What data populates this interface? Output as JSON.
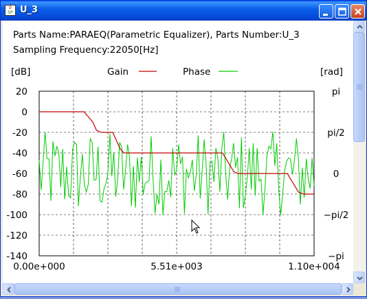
{
  "window": {
    "title": "U_3",
    "icon": "dsp-app-icon",
    "icon_letters": [
      "D",
      "SP"
    ],
    "buttons": [
      "minimize",
      "maximize",
      "close"
    ]
  },
  "info": {
    "line1": "Parts Name:PARAEQ(Parametric Equalizer), Parts Number:U_3",
    "line2": "Sampling Frequency:22050[Hz]"
  },
  "chart_data": {
    "type": "line",
    "left_unit": "[dB]",
    "right_unit": "[rad]",
    "legend_position": "top",
    "grid": true,
    "x": {
      "range": [
        0,
        11025
      ],
      "ticks": [
        {
          "value": 0,
          "label": "0.00e+000"
        },
        {
          "value": 5512.5,
          "label": "5.51e+003"
        },
        {
          "value": 11025,
          "label": "1.10e+004"
        }
      ],
      "gridlines": 8
    },
    "y_left": {
      "range": [
        -140,
        20
      ],
      "ticks": [
        20,
        0,
        -20,
        -40,
        -60,
        -80,
        -100,
        -120,
        -140
      ],
      "tick_labels": [
        "20",
        "0",
        "-20",
        "-40",
        "-60",
        "-80",
        "-100",
        "-120",
        "-140"
      ]
    },
    "y_right": {
      "range": [
        -3.1416,
        3.1416
      ],
      "ticks": [
        {
          "value": 3.1416,
          "label": "pi"
        },
        {
          "value": 1.5708,
          "label": "pi/2"
        },
        {
          "value": 0,
          "label": "0"
        },
        {
          "value": -1.5708,
          "label": "−pi/2"
        },
        {
          "value": -3.1416,
          "label": "−pi"
        }
      ]
    },
    "series": [
      {
        "name": "Gain",
        "color": "#c00000",
        "axis": "left",
        "x": [
          0,
          1800,
          2150,
          2300,
          2500,
          2950,
          3250,
          3400,
          7350,
          7800,
          7950,
          9950,
          10400,
          10600,
          11025
        ],
        "values": [
          0,
          0,
          -10,
          -18,
          -20,
          -20,
          -36,
          -40,
          -40,
          -58,
          -60,
          -60,
          -78,
          -80,
          -80
        ]
      },
      {
        "name": "Phase",
        "color": "#00cc00",
        "axis": "right",
        "description_values": {
          "min": -1.6,
          "max": 1.6,
          "samples_shown": 140
        }
      }
    ]
  },
  "scrollbars": {
    "vertical": {
      "up": "scroll-up",
      "down": "scroll-down"
    },
    "horizontal": {
      "left": "scroll-left",
      "right": "scroll-right"
    }
  },
  "cursor": {
    "type": "arrow-pointer"
  }
}
